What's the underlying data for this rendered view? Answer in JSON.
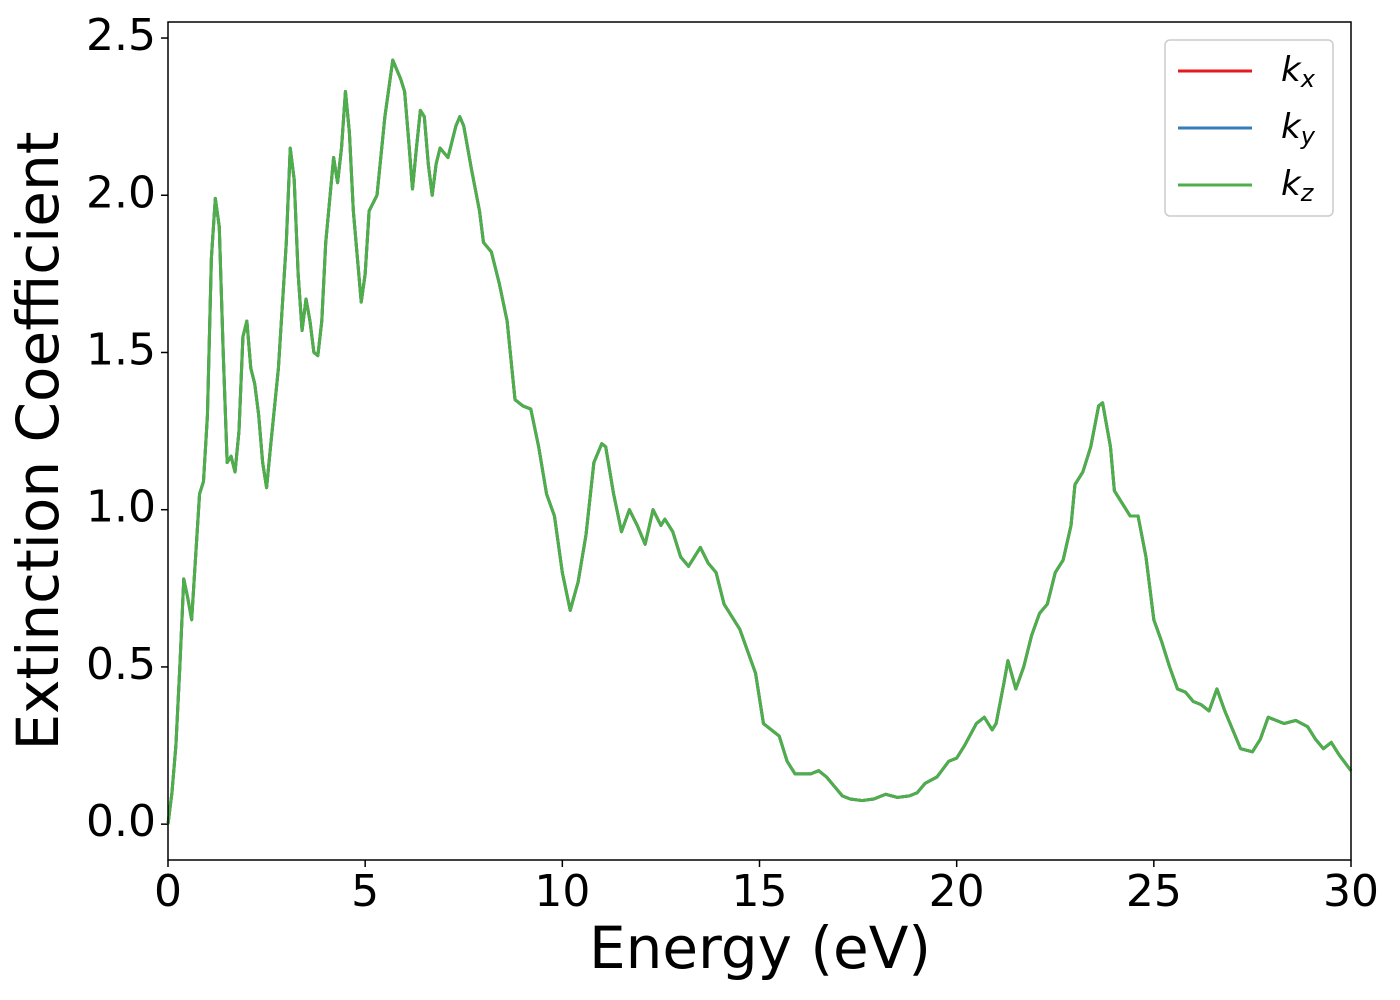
{
  "chart_data": {
    "type": "line",
    "xlabel": "Energy (eV)",
    "ylabel": "Extinction Coefficient",
    "xlim": [
      0,
      30
    ],
    "ylim": [
      -0.114,
      2.551
    ],
    "xticks": [
      0,
      5,
      10,
      15,
      20,
      25,
      30
    ],
    "yticks": [
      {
        "value": 0,
        "label": "0.0"
      },
      0.5,
      {
        "value": 1,
        "label": "1.0"
      },
      1.5,
      {
        "value": 2,
        "label": "2.0"
      },
      2.5
    ],
    "legend": "upper right",
    "x": [
      0,
      0.1,
      0.2,
      0.3,
      0.4,
      0.5,
      0.6,
      0.7,
      0.8,
      0.9,
      1.0,
      1.1,
      1.2,
      1.3,
      1.4,
      1.5,
      1.6,
      1.7,
      1.8,
      1.9,
      2.0,
      2.1,
      2.2,
      2.3,
      2.4,
      2.5,
      2.6,
      2.8,
      3.0,
      3.1,
      3.2,
      3.3,
      3.4,
      3.5,
      3.6,
      3.7,
      3.8,
      3.9,
      4.0,
      4.2,
      4.3,
      4.4,
      4.5,
      4.6,
      4.7,
      4.9,
      5.0,
      5.1,
      5.3,
      5.5,
      5.7,
      5.9,
      6.0,
      6.1,
      6.2,
      6.3,
      6.4,
      6.5,
      6.6,
      6.7,
      6.8,
      6.9,
      7.1,
      7.3,
      7.4,
      7.5,
      7.7,
      7.9,
      8.0,
      8.2,
      8.4,
      8.6,
      8.8,
      9.0,
      9.2,
      9.4,
      9.6,
      9.8,
      10.0,
      10.2,
      10.4,
      10.6,
      10.8,
      11.0,
      11.1,
      11.3,
      11.5,
      11.7,
      11.9,
      12.1,
      12.3,
      12.5,
      12.6,
      12.8,
      13.0,
      13.2,
      13.5,
      13.7,
      13.9,
      14.1,
      14.3,
      14.5,
      14.7,
      14.9,
      15.1,
      15.3,
      15.5,
      15.7,
      15.9,
      16.1,
      16.3,
      16.5,
      16.7,
      16.9,
      17.1,
      17.3,
      17.6,
      17.9,
      18.2,
      18.5,
      18.8,
      19.0,
      19.2,
      19.5,
      19.8,
      20.0,
      20.2,
      20.5,
      20.7,
      20.9,
      21.0,
      21.2,
      21.3,
      21.5,
      21.7,
      21.9,
      22.1,
      22.3,
      22.5,
      22.7,
      22.9,
      23.0,
      23.2,
      23.4,
      23.6,
      23.7,
      23.9,
      24.0,
      24.2,
      24.4,
      24.6,
      24.8,
      25.0,
      25.2,
      25.4,
      25.6,
      25.8,
      26.0,
      26.2,
      26.4,
      26.6,
      26.8,
      27.0,
      27.2,
      27.5,
      27.7,
      27.9,
      28.1,
      28.3,
      28.6,
      28.9,
      29.1,
      29.3,
      29.5,
      29.7,
      30
    ],
    "series": [
      {
        "name": "k",
        "subscript": "x",
        "color": "#e41a1c",
        "values": [
          0,
          0.1,
          0.25,
          0.5,
          0.78,
          0.72,
          0.65,
          0.85,
          1.05,
          1.09,
          1.3,
          1.8,
          1.99,
          1.9,
          1.5,
          1.15,
          1.17,
          1.12,
          1.25,
          1.55,
          1.6,
          1.45,
          1.4,
          1.3,
          1.15,
          1.07,
          1.2,
          1.45,
          1.85,
          2.15,
          2.05,
          1.75,
          1.57,
          1.67,
          1.6,
          1.5,
          1.49,
          1.6,
          1.85,
          2.12,
          2.04,
          2.15,
          2.33,
          2.2,
          1.95,
          1.66,
          1.75,
          1.95,
          2.0,
          2.25,
          2.43,
          2.37,
          2.33,
          2.18,
          2.02,
          2.15,
          2.27,
          2.25,
          2.1,
          2.0,
          2.1,
          2.15,
          2.12,
          2.22,
          2.25,
          2.22,
          2.08,
          1.95,
          1.85,
          1.82,
          1.72,
          1.6,
          1.35,
          1.33,
          1.32,
          1.2,
          1.05,
          0.98,
          0.8,
          0.68,
          0.77,
          0.92,
          1.15,
          1.21,
          1.2,
          1.05,
          0.93,
          1.0,
          0.95,
          0.89,
          1.0,
          0.95,
          0.97,
          0.93,
          0.85,
          0.82,
          0.88,
          0.83,
          0.8,
          0.7,
          0.66,
          0.62,
          0.55,
          0.48,
          0.32,
          0.3,
          0.28,
          0.2,
          0.16,
          0.16,
          0.16,
          0.17,
          0.15,
          0.12,
          0.09,
          0.08,
          0.075,
          0.08,
          0.095,
          0.085,
          0.09,
          0.1,
          0.13,
          0.15,
          0.2,
          0.21,
          0.25,
          0.32,
          0.34,
          0.3,
          0.32,
          0.45,
          0.52,
          0.43,
          0.5,
          0.6,
          0.67,
          0.7,
          0.8,
          0.84,
          0.95,
          1.08,
          1.12,
          1.2,
          1.33,
          1.34,
          1.2,
          1.06,
          1.02,
          0.98,
          0.98,
          0.85,
          0.65,
          0.58,
          0.5,
          0.43,
          0.42,
          0.39,
          0.38,
          0.36,
          0.43,
          0.36,
          0.3,
          0.24,
          0.23,
          0.27,
          0.34,
          0.33,
          0.32,
          0.33,
          0.31,
          0.27,
          0.24,
          0.26,
          0.22,
          0.17
        ]
      },
      {
        "name": "k",
        "subscript": "y",
        "color": "#377eb8",
        "values": [
          0,
          0.1,
          0.25,
          0.5,
          0.78,
          0.72,
          0.65,
          0.85,
          1.05,
          1.09,
          1.3,
          1.8,
          1.99,
          1.9,
          1.5,
          1.15,
          1.17,
          1.12,
          1.25,
          1.55,
          1.6,
          1.45,
          1.4,
          1.3,
          1.15,
          1.07,
          1.2,
          1.45,
          1.85,
          2.15,
          2.05,
          1.75,
          1.57,
          1.67,
          1.6,
          1.5,
          1.49,
          1.6,
          1.85,
          2.12,
          2.04,
          2.15,
          2.33,
          2.2,
          1.95,
          1.66,
          1.75,
          1.95,
          2.0,
          2.25,
          2.43,
          2.37,
          2.33,
          2.18,
          2.02,
          2.15,
          2.27,
          2.25,
          2.1,
          2.0,
          2.1,
          2.15,
          2.12,
          2.22,
          2.25,
          2.22,
          2.08,
          1.95,
          1.85,
          1.82,
          1.72,
          1.6,
          1.35,
          1.33,
          1.32,
          1.2,
          1.05,
          0.98,
          0.8,
          0.68,
          0.77,
          0.92,
          1.15,
          1.21,
          1.2,
          1.05,
          0.93,
          1.0,
          0.95,
          0.89,
          1.0,
          0.95,
          0.97,
          0.93,
          0.85,
          0.82,
          0.88,
          0.83,
          0.8,
          0.7,
          0.66,
          0.62,
          0.55,
          0.48,
          0.32,
          0.3,
          0.28,
          0.2,
          0.16,
          0.16,
          0.16,
          0.17,
          0.15,
          0.12,
          0.09,
          0.08,
          0.075,
          0.08,
          0.095,
          0.085,
          0.09,
          0.1,
          0.13,
          0.15,
          0.2,
          0.21,
          0.25,
          0.32,
          0.34,
          0.3,
          0.32,
          0.45,
          0.52,
          0.43,
          0.5,
          0.6,
          0.67,
          0.7,
          0.8,
          0.84,
          0.95,
          1.08,
          1.12,
          1.2,
          1.33,
          1.34,
          1.2,
          1.06,
          1.02,
          0.98,
          0.98,
          0.85,
          0.65,
          0.58,
          0.5,
          0.43,
          0.42,
          0.39,
          0.38,
          0.36,
          0.43,
          0.36,
          0.3,
          0.24,
          0.23,
          0.27,
          0.34,
          0.33,
          0.32,
          0.33,
          0.31,
          0.27,
          0.24,
          0.26,
          0.22,
          0.17
        ]
      },
      {
        "name": "k",
        "subscript": "z",
        "color": "#4daf4a",
        "values": [
          0,
          0.1,
          0.25,
          0.5,
          0.78,
          0.72,
          0.65,
          0.85,
          1.05,
          1.09,
          1.3,
          1.8,
          1.99,
          1.9,
          1.5,
          1.15,
          1.17,
          1.12,
          1.25,
          1.55,
          1.6,
          1.45,
          1.4,
          1.3,
          1.15,
          1.07,
          1.2,
          1.45,
          1.85,
          2.15,
          2.05,
          1.75,
          1.57,
          1.67,
          1.6,
          1.5,
          1.49,
          1.6,
          1.85,
          2.12,
          2.04,
          2.15,
          2.33,
          2.2,
          1.95,
          1.66,
          1.75,
          1.95,
          2.0,
          2.25,
          2.43,
          2.37,
          2.33,
          2.18,
          2.02,
          2.15,
          2.27,
          2.25,
          2.1,
          2.0,
          2.1,
          2.15,
          2.12,
          2.22,
          2.25,
          2.22,
          2.08,
          1.95,
          1.85,
          1.82,
          1.72,
          1.6,
          1.35,
          1.33,
          1.32,
          1.2,
          1.05,
          0.98,
          0.8,
          0.68,
          0.77,
          0.92,
          1.15,
          1.21,
          1.2,
          1.05,
          0.93,
          1.0,
          0.95,
          0.89,
          1.0,
          0.95,
          0.97,
          0.93,
          0.85,
          0.82,
          0.88,
          0.83,
          0.8,
          0.7,
          0.66,
          0.62,
          0.55,
          0.48,
          0.32,
          0.3,
          0.28,
          0.2,
          0.16,
          0.16,
          0.16,
          0.17,
          0.15,
          0.12,
          0.09,
          0.08,
          0.075,
          0.08,
          0.095,
          0.085,
          0.09,
          0.1,
          0.13,
          0.15,
          0.2,
          0.21,
          0.25,
          0.32,
          0.34,
          0.3,
          0.32,
          0.45,
          0.52,
          0.43,
          0.5,
          0.6,
          0.67,
          0.7,
          0.8,
          0.84,
          0.95,
          1.08,
          1.12,
          1.2,
          1.33,
          1.34,
          1.2,
          1.06,
          1.02,
          0.98,
          0.98,
          0.85,
          0.65,
          0.58,
          0.5,
          0.43,
          0.42,
          0.39,
          0.38,
          0.36,
          0.43,
          0.36,
          0.3,
          0.24,
          0.23,
          0.27,
          0.34,
          0.33,
          0.32,
          0.33,
          0.31,
          0.27,
          0.24,
          0.26,
          0.22,
          0.17
        ]
      }
    ]
  }
}
